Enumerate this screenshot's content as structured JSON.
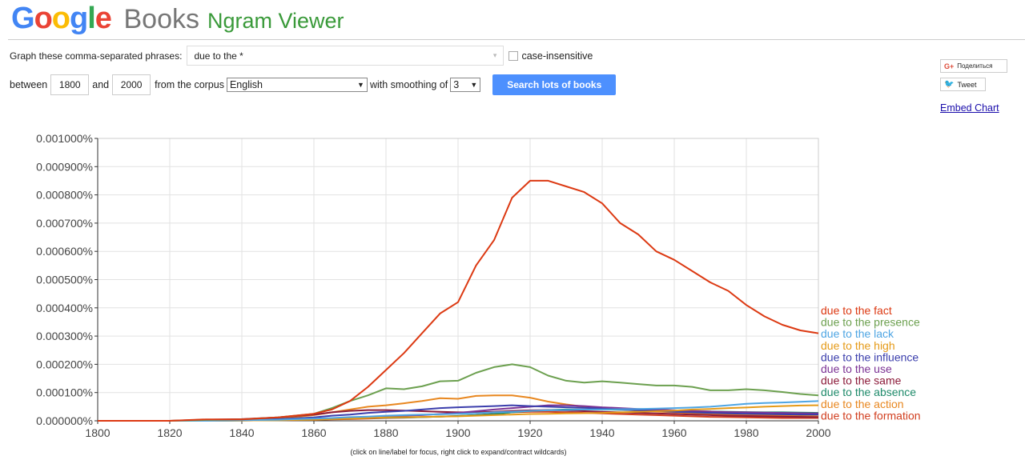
{
  "header": {
    "logo_google": [
      "G",
      "o",
      "o",
      "g",
      "l",
      "e"
    ],
    "logo_colors": [
      "#4285f4",
      "#ea4335",
      "#fbbc05",
      "#4285f4",
      "#34a853",
      "#ea4335"
    ],
    "logo_books": "Books",
    "logo_ngram": "Ngram Viewer"
  },
  "form": {
    "phrases_label": "Graph these comma-separated phrases:",
    "phrases_value": "due to the *",
    "case_label": "case-insensitive",
    "between_label": "between",
    "start_year": "1800",
    "and_label": "and",
    "end_year": "2000",
    "corpus_label": "from the corpus",
    "corpus_value": "English",
    "smoothing_label": "with smoothing of",
    "smoothing_value": "3",
    "search_label": "Search lots of books"
  },
  "side": {
    "share_label": "Поделиться",
    "share_icon": "google-plus-icon",
    "tweet_label": "Tweet",
    "tweet_icon": "twitter-bird-icon",
    "embed_label": "Embed Chart"
  },
  "note": "(click on line/label for focus, right click to expand/contract wildcards)",
  "chart_data": {
    "type": "line",
    "title": "",
    "xlabel": "",
    "ylabel": "",
    "xlim": [
      1800,
      2000
    ],
    "ylim": [
      0,
      0.001
    ],
    "x_ticks": [
      1800,
      1820,
      1840,
      1860,
      1880,
      1900,
      1920,
      1940,
      1960,
      1980,
      2000
    ],
    "y_ticks": [
      "0.000000%",
      "0.000100%",
      "0.000200%",
      "0.000300%",
      "0.000400%",
      "0.000500%",
      "0.000600%",
      "0.000700%",
      "0.000800%",
      "0.000900%",
      "0.001000%"
    ],
    "grid": true,
    "legend_position": "right-of-plot-at-line-ends",
    "x": [
      1800,
      1810,
      1820,
      1830,
      1840,
      1850,
      1860,
      1865,
      1870,
      1875,
      1880,
      1885,
      1890,
      1895,
      1900,
      1905,
      1910,
      1915,
      1920,
      1925,
      1930,
      1935,
      1940,
      1945,
      1950,
      1955,
      1960,
      1965,
      1970,
      1975,
      1980,
      1985,
      1990,
      1995,
      2000
    ],
    "series": [
      {
        "name": "due to the fact",
        "color": "#dc3912",
        "values": [
          0,
          0,
          0,
          5e-06,
          5e-06,
          1.2e-05,
          2.5e-05,
          4e-05,
          7e-05,
          0.00012,
          0.00018,
          0.00024,
          0.00031,
          0.00038,
          0.00042,
          0.00055,
          0.00064,
          0.00079,
          0.00085,
          0.00085,
          0.00083,
          0.00081,
          0.00077,
          0.0007,
          0.00066,
          0.0006,
          0.00057,
          0.00053,
          0.00049,
          0.00046,
          0.00041,
          0.00037,
          0.00034,
          0.00032,
          0.00031
        ]
      },
      {
        "name": "due to the presence",
        "color": "#6ca04f",
        "values": [
          0,
          0,
          0,
          3e-06,
          5e-06,
          1.2e-05,
          2.5e-05,
          4.5e-05,
          7e-05,
          9e-05,
          0.000115,
          0.000112,
          0.000122,
          0.00014,
          0.000142,
          0.00017,
          0.00019,
          0.0002,
          0.00019,
          0.00016,
          0.000142,
          0.000135,
          0.00014,
          0.000135,
          0.00013,
          0.000125,
          0.000125,
          0.00012,
          0.000108,
          0.000108,
          0.000112,
          0.000108,
          0.000102,
          9.5e-05,
          9e-05
        ]
      },
      {
        "name": "due to the lack",
        "color": "#4ea5e3",
        "values": [
          0,
          0,
          0,
          0,
          2e-06,
          4e-06,
          8e-06,
          1e-05,
          1.3e-05,
          1.5e-05,
          1.8e-05,
          2e-05,
          2.2e-05,
          2.3e-05,
          2.5e-05,
          2.7e-05,
          3e-05,
          3.2e-05,
          3.5e-05,
          3.7e-05,
          3.8e-05,
          4e-05,
          4e-05,
          4.1e-05,
          4.2e-05,
          4.3e-05,
          4.5e-05,
          4.7e-05,
          5e-05,
          5.5e-05,
          6e-05,
          6.3e-05,
          6.5e-05,
          6.7e-05,
          7e-05
        ]
      },
      {
        "name": "due to the high",
        "color": "#e59a17",
        "values": [
          0,
          0,
          0,
          0,
          1e-06,
          2e-06,
          4e-06,
          6e-06,
          8e-06,
          1e-05,
          1.2e-05,
          1.3e-05,
          1.4e-05,
          1.5e-05,
          1.6e-05,
          1.8e-05,
          2e-05,
          2.2e-05,
          2.4e-05,
          2.5e-05,
          2.6e-05,
          2.7e-05,
          2.8e-05,
          3e-05,
          3.2e-05,
          3.4e-05,
          3.6e-05,
          4e-05,
          4.2e-05,
          4.5e-05,
          4.7e-05,
          5e-05,
          5.2e-05,
          5.4e-05,
          5.5e-05
        ]
      },
      {
        "name": "due to the influence",
        "color": "#3b3eac",
        "values": [
          0,
          0,
          0,
          0,
          3e-06,
          6e-06,
          1.2e-05,
          1.8e-05,
          2.2e-05,
          2.8e-05,
          3.2e-05,
          3.5e-05,
          4e-05,
          4.5e-05,
          4.8e-05,
          5e-05,
          5.2e-05,
          5.5e-05,
          5.2e-05,
          5e-05,
          4.8e-05,
          4.6e-05,
          4.3e-05,
          4e-05,
          3.8e-05,
          3.5e-05,
          3.2e-05,
          3e-05,
          2.8e-05,
          2.6e-05,
          2.5e-05,
          2.4e-05,
          2.3e-05,
          2.2e-05,
          2.2e-05
        ]
      },
      {
        "name": "due to the use",
        "color": "#7b3294",
        "values": [
          0,
          0,
          0,
          0,
          2e-06,
          4e-06,
          6e-06,
          8e-06,
          1e-05,
          1.2e-05,
          1.5e-05,
          1.8e-05,
          2e-05,
          2.4e-05,
          2.8e-05,
          3.4e-05,
          4e-05,
          4.5e-05,
          5e-05,
          5.5e-05,
          5.5e-05,
          5.2e-05,
          4.8e-05,
          4.5e-05,
          4.2e-05,
          4e-05,
          3.7e-05,
          3.5e-05,
          3.3e-05,
          3.1e-05,
          3e-05,
          2.9e-05,
          2.8e-05,
          2.7e-05,
          2.6e-05
        ]
      },
      {
        "name": "due to the same",
        "color": "#8c1b3a",
        "values": [
          0,
          0,
          0,
          4e-06,
          6e-06,
          1.2e-05,
          2.2e-05,
          3e-05,
          3.5e-05,
          3.8e-05,
          3.8e-05,
          3.6e-05,
          3.4e-05,
          3.2e-05,
          3e-05,
          3e-05,
          3.2e-05,
          3.5e-05,
          3.7e-05,
          3.8e-05,
          3.6e-05,
          3.4e-05,
          3.2e-05,
          3e-05,
          2.8e-05,
          2.6e-05,
          2.4e-05,
          2.2e-05,
          2e-05,
          1.8e-05,
          1.7e-05,
          1.6e-05,
          1.5e-05,
          1.4e-05,
          1.3e-05
        ]
      },
      {
        "name": "due to the absence",
        "color": "#1e8a6a",
        "values": [
          0,
          0,
          0,
          0,
          1e-06,
          2e-06,
          4e-06,
          6e-06,
          8e-06,
          1e-05,
          1.1e-05,
          1.2e-05,
          1.3e-05,
          1.5e-05,
          1.7e-05,
          2e-05,
          2.4e-05,
          3e-05,
          3.5e-05,
          3.8e-05,
          4e-05,
          4e-05,
          4e-05,
          3.9e-05,
          3.8e-05,
          3.6e-05,
          3.5e-05,
          3.4e-05,
          3.3e-05,
          3.2e-05,
          3.1e-05,
          3e-05,
          3e-05,
          2.9e-05,
          2.8e-05
        ]
      },
      {
        "name": "due to the action",
        "color": "#e8871f",
        "values": [
          0,
          0,
          0,
          0,
          3e-06,
          8e-06,
          2e-05,
          3e-05,
          4e-05,
          5e-05,
          5.5e-05,
          6.2e-05,
          7e-05,
          8e-05,
          7.8e-05,
          8.8e-05,
          9e-05,
          9e-05,
          8.2e-05,
          6.8e-05,
          5.8e-05,
          5e-05,
          4.5e-05,
          4e-05,
          3.6e-05,
          3.3e-05,
          3e-05,
          2.7e-05,
          2.4e-05,
          2.2e-05,
          2e-05,
          1.9e-05,
          1.8e-05,
          1.7e-05,
          1.6e-05
        ]
      },
      {
        "name": "due to the formation",
        "color": "#d13f20",
        "values": [
          0,
          0,
          0,
          0,
          1e-06,
          2e-06,
          3e-06,
          5e-06,
          6e-06,
          8e-06,
          1e-05,
          1.1e-05,
          1.3e-05,
          1.5e-05,
          1.7e-05,
          2e-05,
          2.5e-05,
          3e-05,
          3.2e-05,
          3.2e-05,
          3e-05,
          2.8e-05,
          2.6e-05,
          2.4e-05,
          2.2e-05,
          2e-05,
          1.8e-05,
          1.6e-05,
          1.4e-05,
          1.3e-05,
          1.2e-05,
          1.1e-05,
          1e-05,
          1e-05,
          1e-05
        ]
      }
    ]
  }
}
